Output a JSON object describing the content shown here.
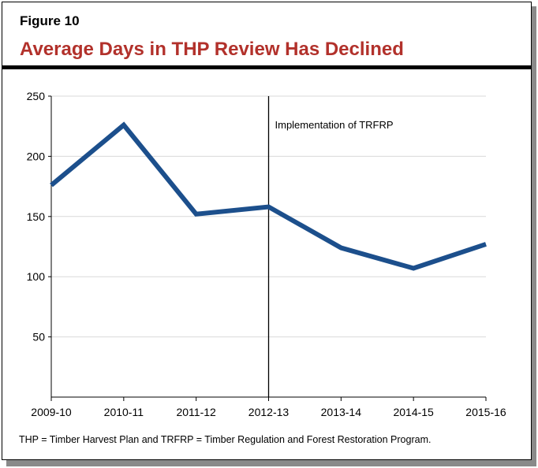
{
  "header": {
    "figure_label": "Figure 10",
    "title": "Average Days in THP Review Has Declined"
  },
  "footnote": "THP = Timber Harvest Plan and TRFRP = Timber Regulation and Forest Restoration Program.",
  "colors": {
    "line": "#1c4f8c",
    "title": "#b2312b",
    "grid": "#d9d9d9"
  },
  "chart_data": {
    "type": "line",
    "categories": [
      "2009-10",
      "2010-11",
      "2011-12",
      "2012-13",
      "2013-14",
      "2014-15",
      "2015-16"
    ],
    "values": [
      176,
      226,
      152,
      158,
      124,
      107,
      127
    ],
    "ylim": [
      0,
      250
    ],
    "yticks": [
      50,
      100,
      150,
      200,
      250
    ],
    "grid": true,
    "annotation": {
      "text": "Implementation of TRFRP",
      "at_category": "2012-13"
    }
  }
}
